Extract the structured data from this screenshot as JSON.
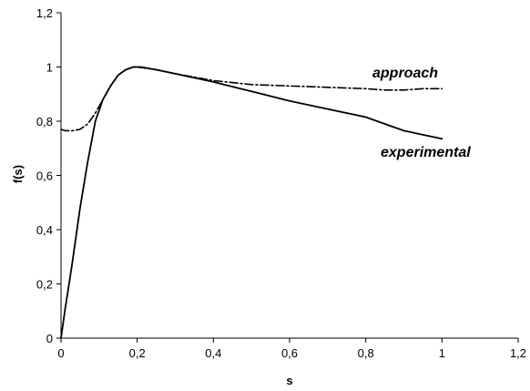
{
  "chart_data": {
    "type": "line",
    "xlabel": "s",
    "ylabel": "f(s)",
    "xlim": [
      0,
      1.2
    ],
    "ylim": [
      0,
      1.2
    ],
    "x_ticks": [
      "0",
      "0,2",
      "0,4",
      "0,6",
      "0,8",
      "1",
      "1,2"
    ],
    "y_ticks": [
      "0",
      "0,2",
      "0,4",
      "0,6",
      "0,8",
      "1",
      "1,2"
    ],
    "grid": false,
    "annotations": [
      "approach",
      "experimental"
    ],
    "series": [
      {
        "name": "experimental",
        "style": "solid",
        "color": "#000000",
        "x": [
          0,
          0.01,
          0.03,
          0.05,
          0.07,
          0.09,
          0.11,
          0.13,
          0.15,
          0.17,
          0.19,
          0.21,
          0.25,
          0.3,
          0.4,
          0.5,
          0.6,
          0.7,
          0.8,
          0.85,
          0.9,
          0.95,
          1.0
        ],
        "y": [
          0,
          0.1,
          0.28,
          0.48,
          0.65,
          0.8,
          0.88,
          0.93,
          0.97,
          0.99,
          1.0,
          1.0,
          0.99,
          0.975,
          0.945,
          0.91,
          0.875,
          0.845,
          0.815,
          0.79,
          0.765,
          0.75,
          0.735
        ]
      },
      {
        "name": "approach",
        "style": "dashdot",
        "color": "#000000",
        "x": [
          0,
          0.01,
          0.03,
          0.05,
          0.07,
          0.09,
          0.11,
          0.13,
          0.15,
          0.17,
          0.19,
          0.21,
          0.25,
          0.3,
          0.4,
          0.5,
          0.6,
          0.7,
          0.8,
          0.85,
          0.9,
          0.95,
          1.0
        ],
        "y": [
          0.77,
          0.765,
          0.765,
          0.77,
          0.79,
          0.83,
          0.88,
          0.93,
          0.97,
          0.99,
          1.0,
          0.998,
          0.99,
          0.975,
          0.95,
          0.935,
          0.93,
          0.925,
          0.92,
          0.915,
          0.915,
          0.92,
          0.92
        ]
      }
    ]
  }
}
